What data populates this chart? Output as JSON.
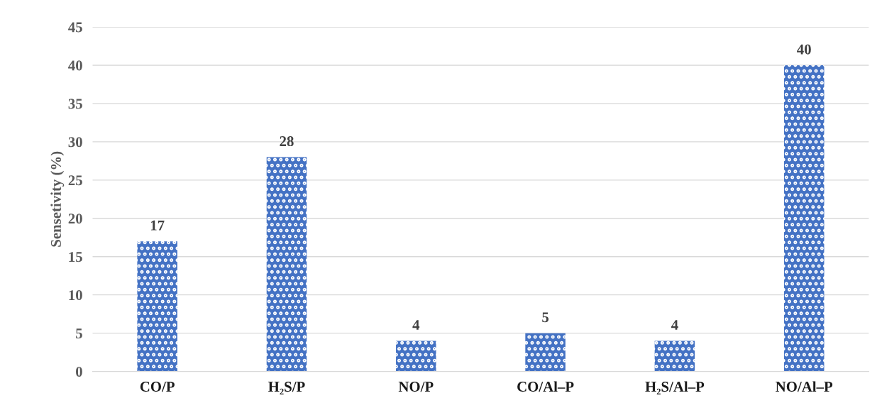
{
  "chart_data": {
    "type": "bar",
    "ylabel": "Sensetivity (%)",
    "categories": [
      "CO/P",
      "H₂S/P",
      "NO/P",
      "CO/Al–P",
      "H₂S/Al–P",
      "NO/Al–P"
    ],
    "values": [
      17,
      28,
      4,
      5,
      4,
      40
    ],
    "color": "#4472c4",
    "ylim": [
      0,
      45
    ],
    "yticks": [
      0,
      5,
      10,
      15,
      20,
      25,
      30,
      35,
      40,
      45
    ],
    "grid": "y",
    "data_labels": true
  }
}
